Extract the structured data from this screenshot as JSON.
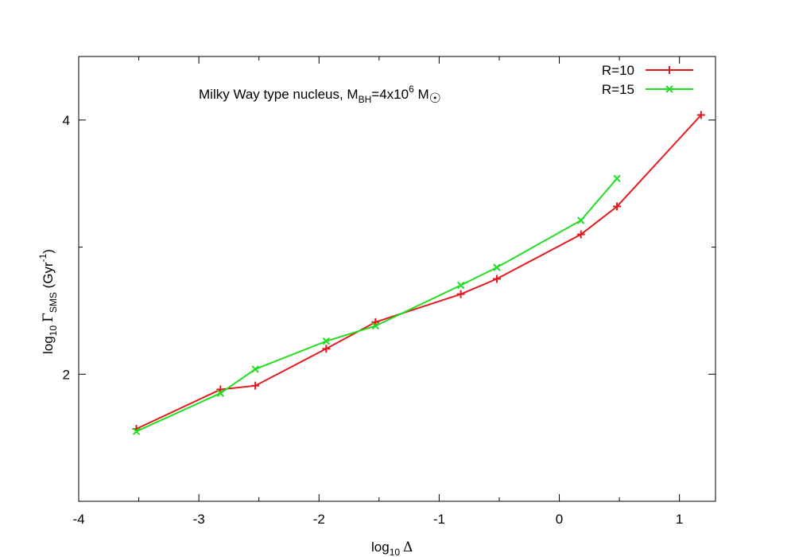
{
  "chart_data": {
    "type": "line",
    "title": {
      "prefix": "Milky Way type nucleus, M",
      "sub1": "BH",
      "mid": "=4x10",
      "sup": "6",
      "suffix": " M",
      "sun_symbol": "☉"
    },
    "xlabel": {
      "prefix": "log",
      "sub": "10",
      "symbol": "Δ"
    },
    "ylabel": {
      "prefix": "log",
      "sub1": "10",
      "symbol": "Γ",
      "sub2": "SMS",
      "unit_prefix": "  (Gyr",
      "unit_sup": "-1",
      "unit_suffix": ")"
    },
    "xlim": [
      -4,
      1.3
    ],
    "ylim": [
      1,
      4.5
    ],
    "x_ticks": [
      -4,
      -3,
      -2,
      -1,
      0,
      1
    ],
    "x_tick_labels": [
      "-4",
      "-3",
      "-2",
      "-1",
      "0",
      "1"
    ],
    "y_ticks": [
      2,
      4
    ],
    "y_tick_labels": [
      "2",
      "4"
    ],
    "x_minor_step": 0.5,
    "y_minor_step": 1,
    "legend_position": "top-right",
    "grid": false,
    "series": [
      {
        "name": "R=10",
        "color": "#e41a1c",
        "marker": "plus",
        "x": [
          -3.52,
          -2.82,
          -2.53,
          -1.94,
          -1.53,
          -0.82,
          -0.52,
          0.18,
          0.48,
          1.18
        ],
        "y": [
          1.57,
          1.88,
          1.91,
          2.2,
          2.41,
          2.63,
          2.75,
          3.1,
          3.32,
          4.04
        ]
      },
      {
        "name": "R=15",
        "color": "#22dd22",
        "marker": "cross",
        "x": [
          -3.52,
          -2.82,
          -2.53,
          -1.94,
          -1.53,
          -0.82,
          -0.52,
          0.18,
          0.48
        ],
        "y": [
          1.55,
          1.85,
          2.04,
          2.26,
          2.38,
          2.7,
          2.84,
          3.21,
          3.54
        ]
      }
    ]
  }
}
